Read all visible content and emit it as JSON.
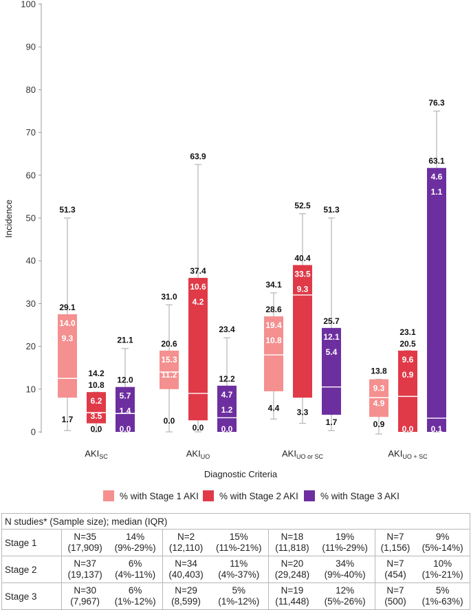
{
  "chart_data": {
    "type": "box",
    "ylabel": "Incidence",
    "xlabel": "Diagnostic Criteria",
    "ylim": [
      0,
      100
    ],
    "yticks": [
      0,
      10,
      20,
      30,
      40,
      50,
      60,
      70,
      80,
      90,
      100
    ],
    "categories": [
      {
        "base": "AKI",
        "sub": "SC"
      },
      {
        "base": "AKI",
        "sub": "UO"
      },
      {
        "base": "AKI",
        "sub": "UO or SC"
      },
      {
        "base": "AKI",
        "sub": "UO + SC"
      }
    ],
    "series": [
      {
        "name": "% with Stage 1 AKI",
        "color": "#f4908f",
        "boxes": [
          {
            "whisker_low": 0.3,
            "q1": 8.0,
            "median": 12.5,
            "q3": 27.5,
            "whisker_high": 50.0,
            "labels": {
              "max": "51.3",
              "q3": "29.1",
              "upper": "14.0",
              "lower": "9.3",
              "min": "1.7"
            }
          },
          {
            "whisker_low": 0.0,
            "q1": 10.0,
            "median": 14.0,
            "q3": 19.0,
            "whisker_high": 29.7,
            "labels": {
              "max": "31.0",
              "q3": "20.6",
              "upper": "15.3",
              "lower": "11.2",
              "min": "0.0"
            }
          },
          {
            "whisker_low": 3.0,
            "q1": 9.5,
            "median": 18.0,
            "q3": 27.0,
            "whisker_high": 32.5,
            "labels": {
              "max": "34.1",
              "q3": "28.6",
              "upper": "19.4",
              "lower": "10.8",
              "min": "4.4"
            }
          },
          {
            "whisker_low": -0.5,
            "q1": 3.5,
            "median": 8.0,
            "q3": 12.3,
            "whisker_high": 12.3,
            "labels": {
              "max": "13.8",
              "upper": "9.3",
              "lower": "4.9",
              "min": "0.9"
            }
          }
        ]
      },
      {
        "name": "% with Stage 2 AKI",
        "color": "#e03a48",
        "boxes": [
          {
            "whisker_low": 0.0,
            "q1": 2.0,
            "median": 4.5,
            "q3": 9.3,
            "whisker_high": 9.3,
            "labels": {
              "max": "14.2",
              "q3": "10.8",
              "upper": "6.2",
              "lower": "3.5",
              "min": "0.0"
            }
          },
          {
            "whisker_low": 0.0,
            "q1": 2.7,
            "median": 9.0,
            "q3": 36.0,
            "whisker_high": 62.5,
            "labels": {
              "max": "63.9",
              "q3": "37.4",
              "upper": "10.6",
              "lower": "4.2",
              "min": "0.0"
            }
          },
          {
            "whisker_low": 2.0,
            "q1": 8.0,
            "median": 32.0,
            "q3": 39.0,
            "whisker_high": 51.0,
            "labels": {
              "max": "52.5",
              "q3": "40.4",
              "upper": "33.5",
              "lower": "9.3",
              "min": "3.3"
            }
          },
          {
            "whisker_low": 0.0,
            "q1": 0.0,
            "median": 8.3,
            "q3": 19.0,
            "whisker_high": 19.0,
            "labels": {
              "max": "23.1",
              "q3": "20.5",
              "upper": "9.6",
              "lower": "0.9",
              "min": "0.0"
            }
          }
        ]
      },
      {
        "name": "% with Stage 3 AKI",
        "color": "#6d2fa0",
        "boxes": [
          {
            "whisker_low": 0.0,
            "q1": 0.0,
            "median": 4.3,
            "q3": 10.5,
            "whisker_high": 19.5,
            "labels": {
              "max": "21.1",
              "q3": "12.0",
              "upper": "5.7",
              "lower": "1.4",
              "min": "0.0"
            }
          },
          {
            "whisker_low": 0.0,
            "q1": 0.0,
            "median": 3.3,
            "q3": 10.8,
            "whisker_high": 22.0,
            "labels": {
              "max": "23.4",
              "q3": "12.2",
              "upper": "4.7",
              "lower": "1.2",
              "min": "0.0"
            }
          },
          {
            "whisker_low": 0.3,
            "q1": 4.0,
            "median": 10.5,
            "q3": 24.3,
            "whisker_high": 50.0,
            "labels": {
              "max": "51.3",
              "q3": "25.7",
              "upper": "12.1",
              "lower": "5.4",
              "min": "1.7"
            }
          },
          {
            "whisker_low": 0.0,
            "q1": 0.0,
            "median": 3.2,
            "q3": 61.7,
            "whisker_high": 75.0,
            "labels": {
              "max": "76.3",
              "q3": "63.1",
              "upper": "4.6",
              "lower": "1.1",
              "min": "0.1"
            }
          }
        ]
      }
    ]
  },
  "legend": [
    {
      "label": "% with Stage 1 AKI",
      "color": "#f4908f"
    },
    {
      "label": "% with Stage 2 AKI",
      "color": "#e03a48"
    },
    {
      "label": "% with Stage 3 AKI",
      "color": "#6d2fa0"
    }
  ],
  "table": {
    "header": "N studies* (Sample size); median (IQR)",
    "rows": [
      {
        "stage": "Stage 1",
        "cells": [
          {
            "n": "N=35",
            "size": "(17,909)",
            "median": "14%",
            "iqr": "(9%-29%)"
          },
          {
            "n": "N=2",
            "size": "(12,110)",
            "median": "15%",
            "iqr": "(11%-21%)"
          },
          {
            "n": "N=18",
            "size": "(11,818)",
            "median": "19%",
            "iqr": "(11%-29%)"
          },
          {
            "n": "N=7",
            "size": "(1,156)",
            "median": "9%",
            "iqr": "(5%-14%)"
          }
        ]
      },
      {
        "stage": "Stage 2",
        "cells": [
          {
            "n": "N=37",
            "size": "(19,137)",
            "median": "6%",
            "iqr": "(4%-11%)"
          },
          {
            "n": "N=34",
            "size": "(40,403)",
            "median": "11%",
            "iqr": "(4%-37%)"
          },
          {
            "n": "N=20",
            "size": "(29,248)",
            "median": "34%",
            "iqr": "(9%-40%)"
          },
          {
            "n": "N=7",
            "size": "(454)",
            "median": "10%",
            "iqr": "(1%-21%)"
          }
        ]
      },
      {
        "stage": "Stage 3",
        "cells": [
          {
            "n": "N=30",
            "size": "(7,967)",
            "median": "6%",
            "iqr": "(1%-12%)"
          },
          {
            "n": "N=29",
            "size": "(8,599)",
            "median": "5%",
            "iqr": "(1%-12%)"
          },
          {
            "n": "N=19",
            "size": "(11,448)",
            "median": "12%",
            "iqr": "(5%-26%)"
          },
          {
            "n": "N=7",
            "size": "(500)",
            "median": "5%",
            "iqr": "(1%-63%)"
          }
        ]
      }
    ]
  }
}
